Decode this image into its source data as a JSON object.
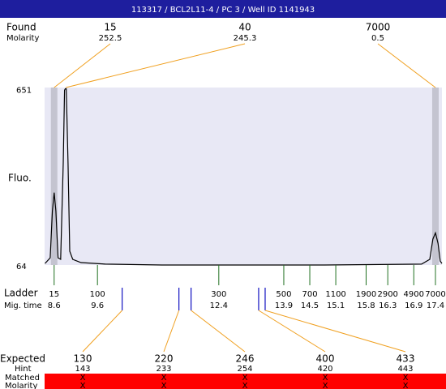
{
  "chart_data": {
    "type": "electropherogram",
    "title": "113317 / BCL2L11-4 / PC 3 / Well ID 1141943",
    "y_label": "Fluo.",
    "ylim": [
      64,
      655
    ],
    "yticks": [
      64,
      651
    ],
    "xlim": [
      8.38,
      17.55
    ],
    "color": "#000000",
    "x": [
      8.39,
      8.51,
      8.56,
      8.6,
      8.64,
      8.69,
      8.75,
      8.81,
      8.84,
      8.86,
      8.88,
      8.92,
      8.96,
      9.03,
      9.22,
      9.78,
      11.09,
      13.52,
      14.84,
      17.08,
      17.27,
      17.34,
      17.4,
      17.46,
      17.51,
      17.55
    ],
    "values": [
      69,
      88,
      244,
      305,
      244,
      88,
      83,
      404,
      646,
      651,
      651,
      404,
      110,
      83,
      72,
      67,
      64,
      64,
      64,
      67,
      83,
      150,
      171,
      136,
      77,
      69
    ],
    "found": {
      "label": "Found",
      "sublabel": "Molarity",
      "color": "#f0a020",
      "sizes": [
        15,
        40,
        7000
      ],
      "molarity": [
        252.5,
        245.3,
        0.5
      ],
      "x": [
        8.6,
        8.87,
        17.4
      ]
    },
    "ladder": {
      "label": "Ladder",
      "sublabel": "Mig. time",
      "color": "#207020",
      "sizes": [
        15,
        100,
        300,
        500,
        700,
        1100,
        1900,
        2900,
        4900,
        7000
      ],
      "times": [
        8.6,
        9.6,
        12.4,
        13.9,
        14.5,
        15.1,
        15.8,
        16.3,
        16.9,
        17.4
      ]
    },
    "expected": {
      "label": "Expected",
      "hint_label": "Hint",
      "matched_label": "Matched",
      "molarity_label": "Molarity",
      "color": "#1010c0",
      "matched_color": "#ff0000",
      "sizes": [
        130,
        220,
        246,
        400,
        433
      ],
      "hints": [
        143,
        233,
        254,
        420,
        443
      ],
      "x": [
        10.17,
        11.48,
        11.76,
        13.32,
        13.47
      ],
      "matched": [
        "X",
        "X",
        "X",
        "X",
        "X"
      ],
      "molarity": [
        "X",
        "X",
        "X",
        "X",
        "X"
      ]
    }
  }
}
